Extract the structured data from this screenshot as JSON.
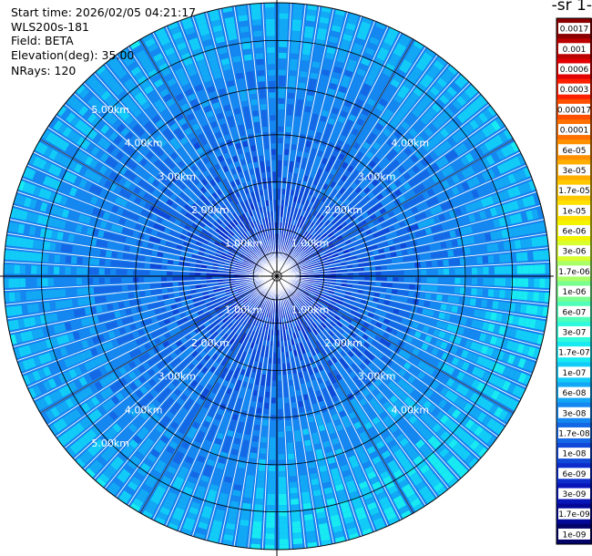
{
  "header": {
    "start_time": "Start time: 2026/02/05 04:21:17",
    "instrument": "WLS200s-181",
    "field": "Field: BETA",
    "elevation": "Elevation(deg): 35.00",
    "nrays": "NRays: 120"
  },
  "colorbar": {
    "unit_label": "-1 sr-",
    "levels": [
      "0.0017",
      "0.001",
      "0.0006",
      "0.0003",
      "0.00017",
      "0.0001",
      "6e-05",
      "3e-05",
      "1.7e-05",
      "1e-05",
      "6e-06",
      "3e-06",
      "1.7e-06",
      "1e-06",
      "6e-07",
      "3e-07",
      "1.7e-07",
      "1e-07",
      "6e-08",
      "3e-08",
      "1.7e-08",
      "1e-08",
      "6e-09",
      "3e-09",
      "1.7e-09",
      "1e-09"
    ],
    "colors": [
      "#8b0000",
      "#bb0000",
      "#e20000",
      "#ff2000",
      "#ff4f00",
      "#ff7000",
      "#ff9000",
      "#ffae00",
      "#ffc800",
      "#ffe000",
      "#f4f400",
      "#d8ff30",
      "#a8ff68",
      "#78ff90",
      "#50ffb8",
      "#30fadc",
      "#18eaf2",
      "#12ccf8",
      "#12a8f5",
      "#1488f0",
      "#1468e6",
      "#1048d8",
      "#0c2ccc",
      "#0816b8",
      "#040896",
      "#020268"
    ]
  },
  "chart_data": {
    "type": "ppi",
    "field": "BETA",
    "elevation_deg": 35.0,
    "nrays": 120,
    "range_rings_km": [
      1,
      2,
      3,
      4,
      5
    ],
    "range_ring_labels": [
      "1.00km",
      "2.00km",
      "3.00km",
      "4.00km",
      "5.00km"
    ],
    "max_range_km": 5.8,
    "color_scale": "log",
    "value_range": [
      1e-09,
      0.0017
    ],
    "typical_values": {
      "near_range_0_2km": "3e-09 to 1e-08",
      "mid_range_2_4km": "1e-08 to 6e-08",
      "far_range_4_5.8km": "3e-08 to 1.7e-07"
    }
  }
}
